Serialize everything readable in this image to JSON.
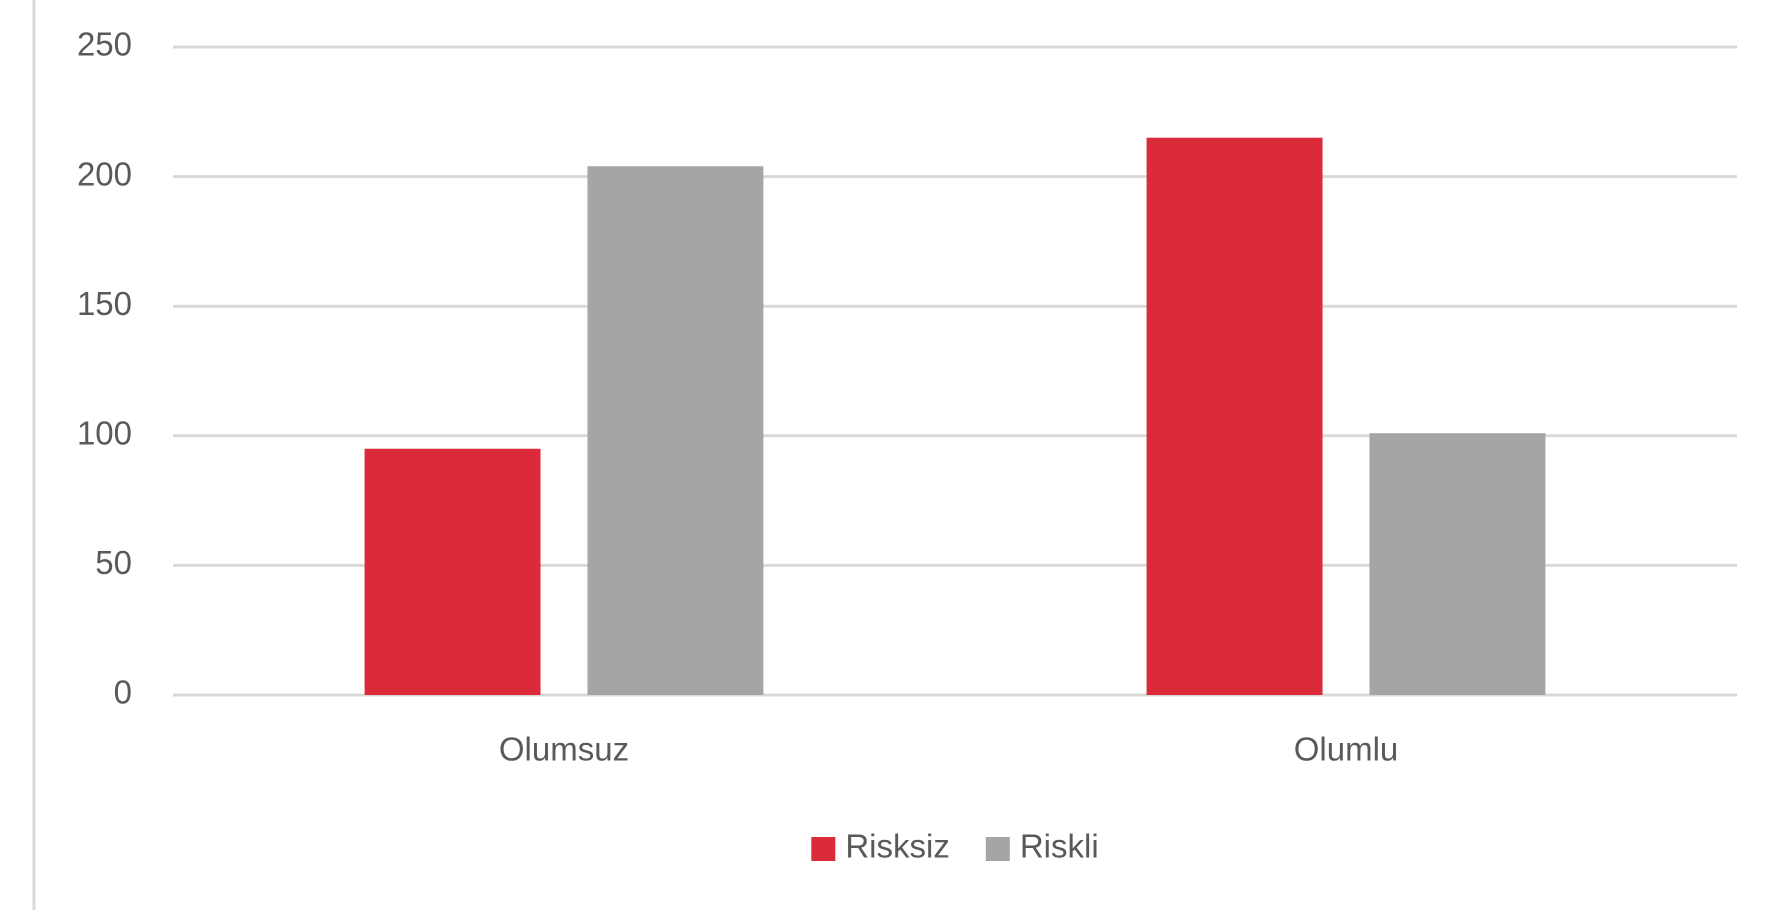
{
  "chart_data": {
    "type": "bar",
    "categories": [
      "Olumsuz",
      "Olumlu"
    ],
    "series": [
      {
        "name": "Risksiz",
        "color": "#db2b3a",
        "values": [
          95,
          215
        ]
      },
      {
        "name": "Riskli",
        "color": "#a5a5a5",
        "values": [
          204,
          101
        ]
      }
    ],
    "ylim": [
      0,
      250
    ],
    "yticks": [
      0,
      50,
      100,
      150,
      200,
      250
    ],
    "grid": true,
    "legend": "bottom"
  }
}
